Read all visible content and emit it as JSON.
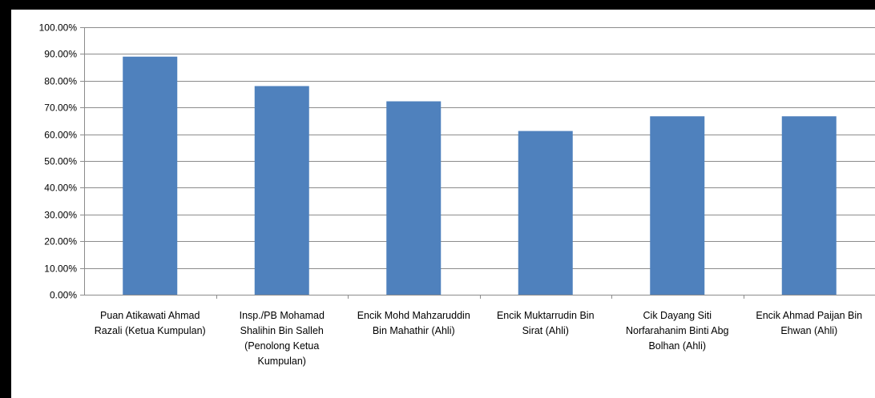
{
  "chart_data": {
    "type": "bar",
    "title": "",
    "xlabel": "",
    "ylabel": "",
    "ylim": [
      0,
      100
    ],
    "y_ticks": [
      "0.00%",
      "10.00%",
      "20.00%",
      "30.00%",
      "40.00%",
      "50.00%",
      "60.00%",
      "70.00%",
      "80.00%",
      "90.00%",
      "100.00%"
    ],
    "y_tick_values": [
      0,
      10,
      20,
      30,
      40,
      50,
      60,
      70,
      80,
      90,
      100
    ],
    "grid": true,
    "legend": "none",
    "bar_color": "#4f81bd",
    "categories": [
      [
        "Puan Atikawati Ahmad",
        "Razali (Ketua Kumpulan)"
      ],
      [
        "Insp./PB Mohamad",
        "Shalihin Bin Salleh",
        "(Penolong Ketua",
        "Kumpulan)"
      ],
      [
        "Encik Mohd Mahzaruddin",
        "Bin Mahathir (Ahli)"
      ],
      [
        "Encik Muktarrudin Bin",
        "Sirat (Ahli)"
      ],
      [
        "Cik Dayang Siti",
        "Norfarahanim Binti Abg",
        "Bolhan (Ahli)"
      ],
      [
        "Encik Ahmad Paijan Bin",
        "Ehwan (Ahli)"
      ]
    ],
    "values": [
      89.0,
      78.0,
      72.3,
      61.2,
      66.7,
      66.7
    ]
  }
}
